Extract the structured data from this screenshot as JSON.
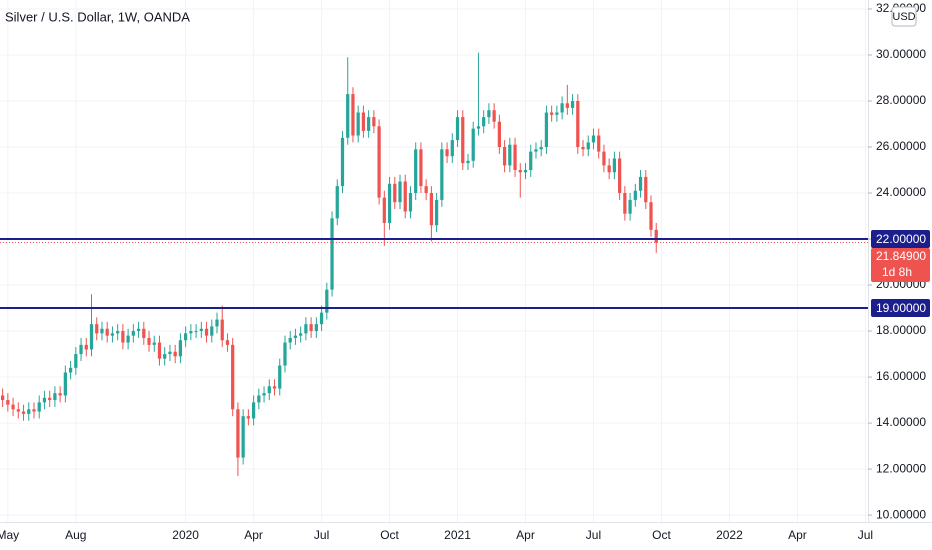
{
  "chart_data": {
    "type": "candlestick",
    "title": "Silver / U.S. Dollar, 1W, OANDA",
    "currency": "USD",
    "up_color": "#26a69a",
    "down_color": "#ef5350",
    "grid": true,
    "categories": [
      null,
      "May",
      null,
      null,
      null,
      null,
      null,
      null,
      null,
      null,
      null,
      null,
      null,
      null,
      "Aug",
      null,
      null,
      null,
      null,
      null,
      null,
      null,
      null,
      null,
      null,
      null,
      null,
      null,
      null,
      null,
      null,
      null,
      null,
      null,
      null,
      "2020",
      null,
      null,
      null,
      null,
      null,
      null,
      null,
      null,
      null,
      null,
      null,
      null,
      "Apr",
      null,
      null,
      null,
      null,
      null,
      null,
      null,
      null,
      null,
      null,
      null,
      null,
      "Jul",
      null,
      null,
      null,
      null,
      null,
      null,
      null,
      null,
      null,
      null,
      null,
      null,
      "Oct",
      null,
      null,
      null,
      null,
      null,
      null,
      null,
      null,
      null,
      null,
      null,
      null,
      "2021",
      null,
      null,
      null,
      null,
      null,
      null,
      null,
      null,
      null,
      null,
      null,
      null,
      "Apr",
      null,
      null,
      null,
      null,
      null,
      null,
      null,
      null,
      null,
      null,
      null,
      null,
      "Jul",
      null,
      null,
      null,
      null,
      null,
      null,
      null,
      null,
      null,
      null,
      null,
      null,
      "Oct",
      null,
      null,
      null,
      null,
      null,
      null,
      null,
      null,
      null,
      null,
      null,
      null,
      "2022",
      null,
      null,
      null,
      null,
      null,
      null,
      null,
      null,
      null,
      null,
      null,
      null,
      "Apr",
      null,
      null,
      null,
      null,
      null,
      null,
      null,
      null,
      null,
      null,
      null,
      null,
      "Jul"
    ],
    "open": [
      15.2,
      15.0,
      14.8,
      14.6,
      14.5,
      14.4,
      14.6,
      14.5,
      14.9,
      15.1,
      15.0,
      15.3,
      15.2,
      16.2,
      16.4,
      17.0,
      17.4,
      17.2,
      18.3,
      17.9,
      18.1,
      17.8,
      17.9,
      18.0,
      17.5,
      17.8,
      18.0,
      18.1,
      17.7,
      17.4,
      17.5,
      16.8,
      17.0,
      17.1,
      16.9,
      17.6,
      17.9,
      18.0,
      18.0,
      18.1,
      17.8,
      18.2,
      18.5,
      17.6,
      17.4,
      14.6,
      12.5,
      14.3,
      14.2,
      14.9,
      15.2,
      15.3,
      15.6,
      15.5,
      16.5,
      17.5,
      17.7,
      17.8,
      17.9,
      18.3,
      18.0,
      18.3,
      18.8,
      19.8,
      22.9,
      24.3,
      26.4,
      28.3,
      26.5,
      27.5,
      26.7,
      27.3,
      26.9,
      23.8,
      22.7,
      24.4,
      23.6,
      24.5,
      23.2,
      24.0,
      25.9,
      24.3,
      24.0,
      22.6,
      23.7,
      25.9,
      25.6,
      26.3,
      27.3,
      25.3,
      25.4,
      26.8,
      26.9,
      27.3,
      27.6,
      27.1,
      26.0,
      25.2,
      26.1,
      25.0,
      24.9,
      25.0,
      25.8,
      25.9,
      26.0,
      27.5,
      27.4,
      27.5,
      27.9,
      27.7,
      28.0,
      26.0,
      25.9,
      26.2,
      26.5,
      25.8,
      25.2,
      24.9,
      25.5,
      24.0,
      23.1,
      23.7,
      24.1,
      24.7,
      23.6,
      22.4,
      null,
      null,
      null,
      null,
      null,
      null,
      null,
      null,
      null,
      null,
      null,
      null,
      null,
      null,
      null,
      null,
      null,
      null,
      null,
      null,
      null,
      null,
      null,
      null,
      null,
      null,
      null,
      null,
      null,
      null,
      null,
      null,
      null,
      null,
      null,
      null,
      null,
      null,
      null,
      null
    ],
    "high": [
      15.5,
      15.3,
      15.1,
      14.9,
      14.8,
      14.9,
      14.9,
      15.2,
      15.4,
      15.4,
      15.6,
      15.6,
      16.5,
      16.7,
      17.3,
      17.7,
      17.7,
      19.6,
      18.6,
      18.4,
      18.4,
      18.2,
      18.3,
      18.3,
      18.1,
      18.3,
      18.4,
      18.4,
      18.0,
      17.8,
      17.8,
      17.3,
      17.4,
      17.4,
      17.9,
      18.2,
      18.3,
      18.3,
      18.4,
      18.4,
      18.5,
      18.8,
      19.1,
      17.9,
      17.7,
      14.9,
      14.6,
      14.6,
      15.2,
      15.5,
      15.6,
      15.9,
      15.9,
      16.8,
      17.8,
      18.0,
      18.1,
      18.2,
      18.6,
      18.6,
      18.6,
      19.1,
      20.1,
      23.2,
      24.6,
      26.7,
      29.9,
      28.6,
      27.8,
      27.8,
      27.6,
      27.6,
      27.2,
      24.1,
      24.7,
      24.7,
      24.8,
      24.8,
      24.3,
      26.2,
      26.2,
      24.6,
      24.3,
      24.0,
      26.2,
      26.2,
      26.6,
      27.6,
      27.6,
      25.7,
      27.1,
      30.1,
      27.6,
      27.9,
      27.9,
      27.4,
      26.3,
      26.4,
      26.4,
      25.3,
      25.3,
      26.1,
      26.2,
      26.3,
      27.8,
      27.8,
      27.8,
      28.2,
      28.7,
      28.3,
      28.3,
      26.3,
      26.5,
      26.8,
      26.8,
      26.1,
      25.5,
      25.8,
      25.8,
      24.3,
      24.0,
      24.4,
      25.0,
      25.0,
      23.9,
      22.7,
      null,
      null,
      null,
      null,
      null,
      null,
      null,
      null,
      null,
      null,
      null,
      null,
      null,
      null,
      null,
      null,
      null,
      null,
      null,
      null,
      null,
      null,
      null,
      null,
      null,
      null,
      null,
      null,
      null,
      null,
      null,
      null,
      null,
      null,
      null,
      null,
      null,
      null,
      null,
      null
    ],
    "low": [
      14.7,
      14.5,
      14.3,
      14.2,
      14.1,
      14.1,
      14.2,
      14.2,
      14.6,
      14.7,
      14.7,
      14.9,
      14.9,
      15.9,
      16.1,
      16.7,
      16.9,
      16.9,
      17.6,
      17.6,
      17.5,
      17.5,
      17.6,
      17.2,
      17.2,
      17.5,
      17.7,
      17.4,
      17.1,
      17.1,
      16.5,
      16.5,
      16.7,
      16.6,
      16.6,
      17.3,
      17.6,
      17.7,
      17.7,
      17.5,
      17.5,
      17.9,
      17.3,
      17.1,
      14.3,
      11.7,
      12.2,
      13.9,
      13.9,
      14.6,
      14.9,
      15.0,
      15.2,
      15.2,
      16.2,
      17.2,
      17.4,
      17.5,
      17.6,
      17.7,
      17.7,
      18.0,
      18.5,
      19.5,
      22.6,
      24.0,
      26.1,
      26.2,
      26.2,
      26.4,
      26.4,
      26.6,
      23.5,
      21.7,
      22.4,
      23.3,
      23.3,
      22.9,
      22.9,
      23.7,
      24.0,
      23.7,
      21.9,
      22.3,
      23.4,
      25.3,
      25.3,
      26.0,
      25.0,
      25.0,
      25.1,
      26.5,
      26.6,
      27.0,
      26.8,
      25.7,
      24.9,
      24.9,
      24.7,
      23.8,
      24.6,
      24.7,
      25.5,
      25.6,
      25.7,
      27.1,
      27.1,
      27.2,
      27.4,
      27.4,
      25.7,
      25.6,
      25.6,
      25.9,
      25.5,
      24.9,
      24.6,
      24.6,
      23.7,
      22.8,
      22.8,
      23.4,
      23.8,
      23.3,
      22.1,
      21.4,
      null,
      null,
      null,
      null,
      null,
      null,
      null,
      null,
      null,
      null,
      null,
      null,
      null,
      null,
      null,
      null,
      null,
      null,
      null,
      null,
      null,
      null,
      null,
      null,
      null,
      null,
      null,
      null,
      null,
      null,
      null,
      null,
      null,
      null,
      null,
      null,
      null,
      null,
      null,
      null
    ],
    "close": [
      15.0,
      14.8,
      14.6,
      14.5,
      14.4,
      14.6,
      14.5,
      14.9,
      15.1,
      15.0,
      15.3,
      15.2,
      16.2,
      16.4,
      17.0,
      17.4,
      17.2,
      18.3,
      17.9,
      18.1,
      17.8,
      17.9,
      18.0,
      17.5,
      17.8,
      18.0,
      18.1,
      17.7,
      17.4,
      17.5,
      16.8,
      17.0,
      17.1,
      16.9,
      17.6,
      17.9,
      18.0,
      18.0,
      18.1,
      17.8,
      18.2,
      18.5,
      17.6,
      17.4,
      14.6,
      12.5,
      14.3,
      14.2,
      14.9,
      15.2,
      15.3,
      15.6,
      15.5,
      16.5,
      17.5,
      17.7,
      17.8,
      17.9,
      18.3,
      18.0,
      18.3,
      18.8,
      19.8,
      22.9,
      24.3,
      26.4,
      28.3,
      26.5,
      27.5,
      26.7,
      27.3,
      26.9,
      23.8,
      22.7,
      24.4,
      23.6,
      24.5,
      23.2,
      24.0,
      25.9,
      24.3,
      24.0,
      22.6,
      23.7,
      25.9,
      25.6,
      26.3,
      27.3,
      25.3,
      25.4,
      26.8,
      26.9,
      27.3,
      27.6,
      27.1,
      26.0,
      25.2,
      26.1,
      25.0,
      24.9,
      25.0,
      25.8,
      25.9,
      26.0,
      27.5,
      27.4,
      27.5,
      27.9,
      27.7,
      28.0,
      26.0,
      25.9,
      26.2,
      26.5,
      25.8,
      25.2,
      24.9,
      25.5,
      24.0,
      23.1,
      23.7,
      24.1,
      24.7,
      23.6,
      22.4,
      21.849,
      null,
      null,
      null,
      null,
      null,
      null,
      null,
      null,
      null,
      null,
      null,
      null,
      null,
      null,
      null,
      null,
      null,
      null,
      null,
      null,
      null,
      null,
      null,
      null,
      null,
      null,
      null,
      null,
      null,
      null,
      null,
      null,
      null,
      null,
      null,
      null,
      null,
      null,
      null,
      null
    ],
    "ylim": [
      9.7,
      32.39
    ],
    "yticks": [
      {
        "value": 10,
        "label": "10.00000"
      },
      {
        "value": 12,
        "label": "12.00000"
      },
      {
        "value": 14,
        "label": "14.00000"
      },
      {
        "value": 16,
        "label": "16.00000"
      },
      {
        "value": 18,
        "label": "18.00000"
      },
      {
        "value": 20,
        "label": "20.00000"
      },
      {
        "value": 22,
        "label": "22.00000"
      },
      {
        "value": 24,
        "label": "24.00000"
      },
      {
        "value": 26,
        "label": "26.00000"
      },
      {
        "value": 28,
        "label": "28.00000"
      },
      {
        "value": 30,
        "label": "30.00000"
      },
      {
        "value": 32,
        "label": "32.00000"
      }
    ],
    "hlines": [
      {
        "value": 22,
        "label": "22.00000"
      },
      {
        "value": 19,
        "label": "19.00000"
      }
    ],
    "hline_color": "#1c1e8c",
    "last_price": {
      "value": 21.849,
      "label": "21.84900"
    },
    "countdown": "1d 8h"
  }
}
